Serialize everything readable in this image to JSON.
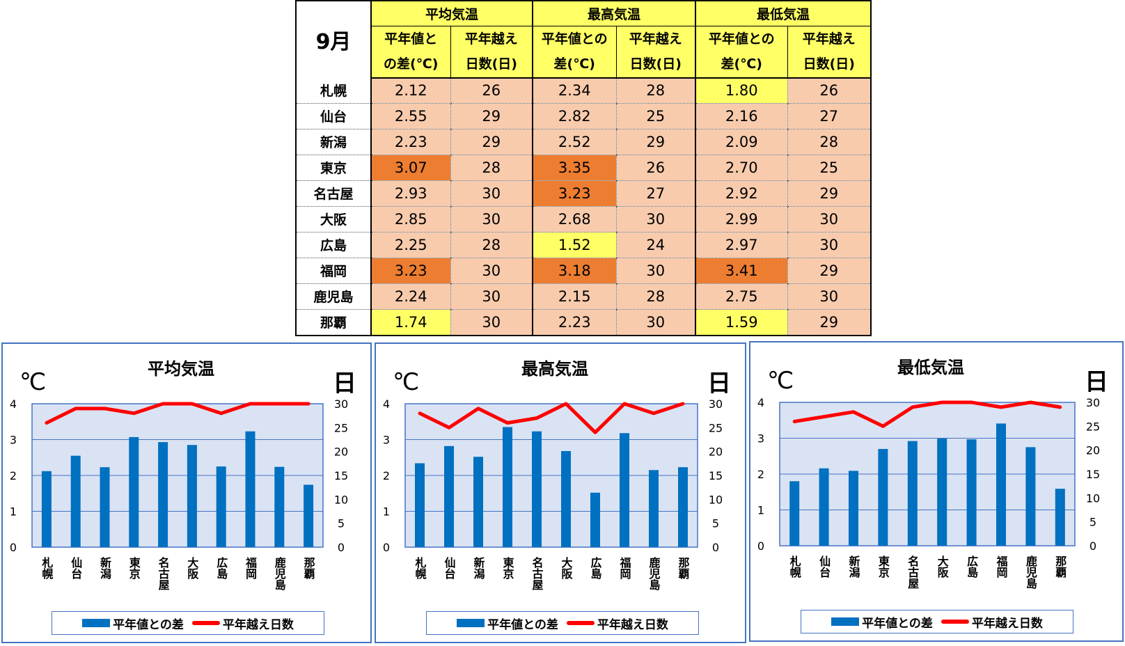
{
  "table": {
    "month_label": "9月",
    "groups": [
      {
        "title": "平均気温",
        "sub1": [
          "平年値と",
          "の差(℃)"
        ],
        "sub2": [
          "平年越え",
          "日数(日)"
        ]
      },
      {
        "title": "最高気温",
        "sub1": [
          "平年値との",
          "差(℃)"
        ],
        "sub2": [
          "平年越え",
          "日数(日)"
        ]
      },
      {
        "title": "最低気温",
        "sub1": [
          "平年値との",
          "差(℃)"
        ],
        "sub2": [
          "平年越え",
          "日数(日)"
        ]
      }
    ],
    "rows": [
      {
        "city": "札幌",
        "cells": [
          "2.12",
          "26",
          "2.34",
          "28",
          "1.80",
          "26"
        ]
      },
      {
        "city": "仙台",
        "cells": [
          "2.55",
          "29",
          "2.82",
          "25",
          "2.16",
          "27"
        ]
      },
      {
        "city": "新潟",
        "cells": [
          "2.23",
          "29",
          "2.52",
          "29",
          "2.09",
          "28"
        ]
      },
      {
        "city": "東京",
        "cells": [
          "3.07",
          "28",
          "3.35",
          "26",
          "2.70",
          "25"
        ]
      },
      {
        "city": "名古屋",
        "cells": [
          "2.93",
          "30",
          "3.23",
          "27",
          "2.92",
          "29"
        ]
      },
      {
        "city": "大阪",
        "cells": [
          "2.85",
          "30",
          "2.68",
          "30",
          "2.99",
          "30"
        ]
      },
      {
        "city": "広島",
        "cells": [
          "2.25",
          "28",
          "1.52",
          "24",
          "2.97",
          "30"
        ]
      },
      {
        "city": "福岡",
        "cells": [
          "3.23",
          "30",
          "3.18",
          "30",
          "3.41",
          "29"
        ]
      },
      {
        "city": "鹿児島",
        "cells": [
          "2.24",
          "30",
          "2.15",
          "28",
          "2.75",
          "30"
        ]
      },
      {
        "city": "那覇",
        "cells": [
          "1.74",
          "30",
          "2.23",
          "30",
          "1.59",
          "29"
        ]
      }
    ],
    "colors": {
      "normal": "#f8cbad",
      "high": "#ed7d31",
      "low": "#ffff66",
      "header": "#ffff66"
    },
    "highlight_high": [
      [
        3,
        0
      ],
      [
        7,
        0
      ],
      [
        3,
        2
      ],
      [
        4,
        2
      ],
      [
        7,
        2
      ],
      [
        7,
        4
      ]
    ],
    "highlight_low": [
      [
        9,
        0
      ],
      [
        6,
        2
      ],
      [
        0,
        4
      ],
      [
        9,
        4
      ]
    ]
  },
  "chart_data": [
    {
      "type": "bar",
      "title": "平均気温",
      "ylabel": "℃",
      "y2label": "日",
      "categories": [
        "札幌",
        "仙台",
        "新潟",
        "東京",
        "名古屋",
        "大阪",
        "広島",
        "福岡",
        "鹿児島",
        "那覇"
      ],
      "ylim": [
        0,
        4
      ],
      "yticks": [
        "0",
        "1",
        "2",
        "3",
        "4"
      ],
      "y2lim": [
        0,
        30
      ],
      "y2ticks": [
        "0",
        "5",
        "10",
        "15",
        "20",
        "25",
        "30"
      ],
      "series": [
        {
          "name": "平年値との差",
          "type": "bar",
          "axis": "left",
          "color": "#0070c0",
          "values": [
            2.12,
            2.55,
            2.23,
            3.07,
            2.93,
            2.85,
            2.25,
            3.23,
            2.24,
            1.74
          ]
        },
        {
          "name": "平年越え日数",
          "type": "line",
          "axis": "right",
          "color": "#ff0000",
          "values": [
            26,
            29,
            29,
            28,
            30,
            30,
            28,
            30,
            30,
            30
          ]
        }
      ],
      "grid": true,
      "legend": "bottom"
    },
    {
      "type": "bar",
      "title": "最高気温",
      "ylabel": "℃",
      "y2label": "日",
      "categories": [
        "札幌",
        "仙台",
        "新潟",
        "東京",
        "名古屋",
        "大阪",
        "広島",
        "福岡",
        "鹿児島",
        "那覇"
      ],
      "ylim": [
        0,
        4
      ],
      "yticks": [
        "0",
        "1",
        "2",
        "3",
        "4"
      ],
      "y2lim": [
        0,
        30
      ],
      "y2ticks": [
        "0",
        "5",
        "10",
        "15",
        "20",
        "25",
        "30"
      ],
      "series": [
        {
          "name": "平年値との差",
          "type": "bar",
          "axis": "left",
          "color": "#0070c0",
          "values": [
            2.34,
            2.82,
            2.52,
            3.35,
            3.23,
            2.68,
            1.52,
            3.18,
            2.15,
            2.23
          ]
        },
        {
          "name": "平年越え日数",
          "type": "line",
          "axis": "right",
          "color": "#ff0000",
          "values": [
            28,
            25,
            29,
            26,
            27,
            30,
            24,
            30,
            28,
            30
          ]
        }
      ],
      "grid": true,
      "legend": "bottom"
    },
    {
      "type": "bar",
      "title": "最低気温",
      "ylabel": "℃",
      "y2label": "日",
      "categories": [
        "札幌",
        "仙台",
        "新潟",
        "東京",
        "名古屋",
        "大阪",
        "広島",
        "福岡",
        "鹿児島",
        "那覇"
      ],
      "ylim": [
        0,
        4
      ],
      "yticks": [
        "0",
        "1",
        "2",
        "3",
        "4"
      ],
      "y2lim": [
        0,
        30
      ],
      "y2ticks": [
        "0",
        "5",
        "10",
        "15",
        "20",
        "25",
        "30"
      ],
      "series": [
        {
          "name": "平年値との差",
          "type": "bar",
          "axis": "left",
          "color": "#0070c0",
          "values": [
            1.8,
            2.16,
            2.09,
            2.7,
            2.92,
            2.99,
            2.97,
            3.41,
            2.75,
            1.59
          ]
        },
        {
          "name": "平年越え日数",
          "type": "line",
          "axis": "right",
          "color": "#ff0000",
          "values": [
            26,
            27,
            28,
            25,
            29,
            30,
            30,
            29,
            30,
            29
          ]
        }
      ],
      "grid": true,
      "legend": "bottom"
    }
  ]
}
